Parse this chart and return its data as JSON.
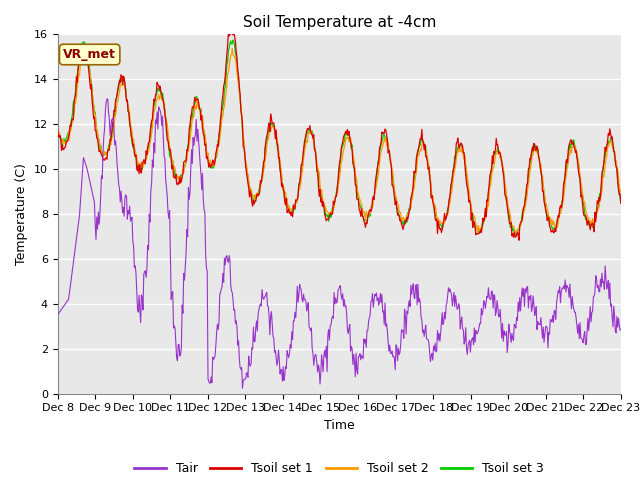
{
  "title": "Soil Temperature at -4cm",
  "xlabel": "Time",
  "ylabel": "Temperature (C)",
  "legend_label": "VR_met",
  "series_labels": [
    "Tair",
    "Tsoil set 1",
    "Tsoil set 2",
    "Tsoil set 3"
  ],
  "series_colors": [
    "#9933cc",
    "#dd0000",
    "#ff9900",
    "#00cc00"
  ],
  "ylim": [
    0,
    16
  ],
  "plot_bg_color": "#e8e8e8",
  "xtick_labels": [
    "Dec 8",
    "Dec 9",
    "Dec 10",
    "Dec 11",
    "Dec 12",
    "Dec 13",
    "Dec 14",
    "Dec 15",
    "Dec 16",
    "Dec 17",
    "Dec 18",
    "Dec 19",
    "Dec 20",
    "Dec 21",
    "Dec 22",
    "Dec 23"
  ],
  "title_fontsize": 11,
  "axis_fontsize": 9,
  "tick_fontsize": 8,
  "legend_fontsize": 9
}
